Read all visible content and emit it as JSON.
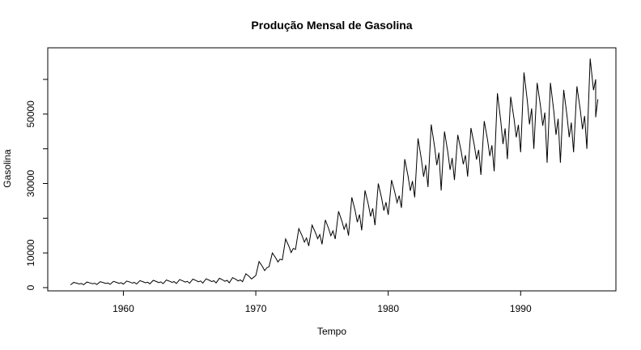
{
  "chart_data": {
    "type": "line",
    "title": "Produção Mensal de Gasolina",
    "xlabel": "Tempo",
    "ylabel": "Gasolina",
    "xlim": [
      1956,
      1995.667
    ],
    "ylim": [
      0,
      60000
    ],
    "x_ticks": [
      1960,
      1970,
      1980,
      1990
    ],
    "y_ticks": [
      0,
      10000,
      30000,
      50000
    ],
    "x_tick_labels": [
      "1960",
      "1970",
      "1980",
      "1990"
    ],
    "y_tick_labels": [
      "0",
      "10000",
      "30000",
      "50000"
    ],
    "grid": false,
    "legend": "none",
    "line_color": "#000000",
    "series": [
      {
        "x_start": 1956,
        "step": 0.0833333,
        "annual_peaks": [
          [
            1956.25,
            1500
          ],
          [
            1957.25,
            1600
          ],
          [
            1958.25,
            1700
          ],
          [
            1959.25,
            1800
          ],
          [
            1960.25,
            1900
          ],
          [
            1961.25,
            2000
          ],
          [
            1962.25,
            2100
          ],
          [
            1963.25,
            2200
          ],
          [
            1964.25,
            2300
          ],
          [
            1965.25,
            2450
          ],
          [
            1966.25,
            2550
          ],
          [
            1967.25,
            2700
          ],
          [
            1968.25,
            2900
          ],
          [
            1969.25,
            4000
          ],
          [
            1970.25,
            7500
          ],
          [
            1971.25,
            10000
          ],
          [
            1972.25,
            14000
          ],
          [
            1973.25,
            17000
          ],
          [
            1974.25,
            18000
          ],
          [
            1975.25,
            19500
          ],
          [
            1976.25,
            22000
          ],
          [
            1977.25,
            26000
          ],
          [
            1978.25,
            28000
          ],
          [
            1979.25,
            30000
          ],
          [
            1980.25,
            31000
          ],
          [
            1981.25,
            37000
          ],
          [
            1982.25,
            43000
          ],
          [
            1983.25,
            47000
          ],
          [
            1984.25,
            45000
          ],
          [
            1985.25,
            44000
          ],
          [
            1986.25,
            46000
          ],
          [
            1987.25,
            48000
          ],
          [
            1988.25,
            56000
          ],
          [
            1989.25,
            55000
          ],
          [
            1990.25,
            62000
          ],
          [
            1991.25,
            59000
          ],
          [
            1992.25,
            59000
          ],
          [
            1993.25,
            57000
          ],
          [
            1994.25,
            58000
          ],
          [
            1995.25,
            66000
          ]
        ],
        "annual_troughs": [
          [
            1956.0,
            800
          ],
          [
            1957.0,
            850
          ],
          [
            1958.0,
            900
          ],
          [
            1959.0,
            950
          ],
          [
            1960.0,
            1000
          ],
          [
            1961.0,
            1050
          ],
          [
            1962.0,
            1100
          ],
          [
            1963.0,
            1150
          ],
          [
            1964.0,
            1200
          ],
          [
            1965.0,
            1250
          ],
          [
            1966.0,
            1300
          ],
          [
            1967.0,
            1350
          ],
          [
            1968.0,
            1400
          ],
          [
            1969.0,
            1700
          ],
          [
            1970.0,
            3500
          ],
          [
            1971.0,
            6000
          ],
          [
            1972.0,
            8000
          ],
          [
            1973.0,
            11000
          ],
          [
            1974.0,
            12000
          ],
          [
            1975.0,
            12500
          ],
          [
            1976.0,
            14000
          ],
          [
            1977.0,
            15000
          ],
          [
            1978.0,
            16500
          ],
          [
            1979.0,
            18000
          ],
          [
            1980.0,
            21000
          ],
          [
            1981.0,
            23000
          ],
          [
            1982.0,
            26000
          ],
          [
            1983.0,
            29000
          ],
          [
            1984.0,
            28000
          ],
          [
            1985.0,
            31000
          ],
          [
            1986.0,
            32000
          ],
          [
            1987.0,
            32500
          ],
          [
            1988.0,
            33500
          ],
          [
            1989.0,
            37000
          ],
          [
            1990.0,
            39000
          ],
          [
            1991.0,
            40000
          ],
          [
            1992.0,
            36000
          ],
          [
            1993.0,
            36000
          ],
          [
            1994.0,
            39000
          ],
          [
            1995.0,
            40000
          ]
        ]
      }
    ]
  }
}
